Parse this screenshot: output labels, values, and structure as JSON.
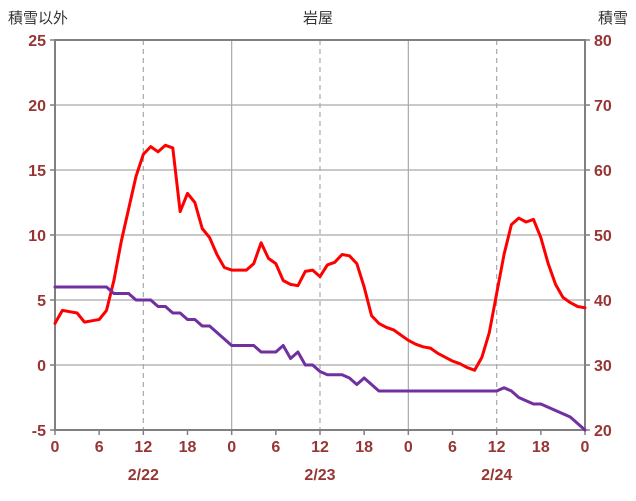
{
  "chart_data": {
    "type": "line",
    "title": "岩屋",
    "left_axis": {
      "title": "積雪以外",
      "min": -5,
      "max": 25,
      "ticks": [
        25,
        20,
        15,
        10,
        5,
        0,
        -5
      ]
    },
    "right_axis": {
      "title": "積雪",
      "min": 20,
      "max": 80,
      "ticks": [
        80,
        70,
        60,
        50,
        40,
        30,
        20
      ]
    },
    "x_axis": {
      "hours_total": 72,
      "tick_interval": 6,
      "tick_labels": [
        "0",
        "6",
        "12",
        "18",
        "0",
        "6",
        "12",
        "18",
        "0",
        "6",
        "12",
        "18",
        "0"
      ],
      "date_labels": [
        {
          "label": "2/22",
          "hour": 12
        },
        {
          "label": "2/23",
          "hour": 36
        },
        {
          "label": "2/24",
          "hour": 60
        }
      ]
    },
    "grid": {
      "h_lines": [
        20,
        15,
        10,
        5,
        0
      ],
      "v_solid_hours": [
        24,
        48
      ],
      "v_dashed_hours": [
        12,
        36,
        60
      ]
    },
    "legend": "off",
    "colors": {
      "red_series": "#FF0000",
      "purple_series": "#7030A0",
      "grid": "#A9A9A9",
      "border": "#808080",
      "tick_label": "#963634",
      "title": "#333333"
    },
    "series": [
      {
        "key": "red-line",
        "name": "積雪以外",
        "axis": "left",
        "color": "#FF0000",
        "values": [
          3.2,
          4.2,
          4.1,
          4.0,
          3.3,
          3.4,
          3.5,
          4.2,
          6.5,
          9.5,
          12.0,
          14.5,
          16.2,
          16.8,
          16.4,
          16.9,
          16.7,
          11.8,
          13.2,
          12.5,
          10.5,
          9.8,
          8.5,
          7.5,
          7.3,
          7.3,
          7.3,
          7.8,
          9.4,
          8.2,
          7.8,
          6.5,
          6.2,
          6.1,
          7.2,
          7.3,
          6.8,
          7.7,
          7.9,
          8.5,
          8.4,
          7.8,
          6.0,
          3.8,
          3.2,
          2.9,
          2.7,
          2.3,
          1.9,
          1.6,
          1.4,
          1.3,
          0.9,
          0.6,
          0.3,
          0.1,
          -0.2,
          -0.4,
          0.6,
          2.5,
          5.5,
          8.5,
          10.8,
          11.3,
          11.0,
          11.2,
          9.8,
          7.8,
          6.2,
          5.2,
          4.8,
          4.5,
          4.4
        ]
      },
      {
        "key": "purple-line",
        "name": "積雪",
        "axis": "right",
        "color": "#7030A0",
        "values": [
          42,
          42,
          42,
          42,
          42,
          42,
          42,
          42,
          41,
          41,
          41,
          40,
          40,
          40,
          39,
          39,
          38,
          38,
          37,
          37,
          36,
          36,
          35,
          34,
          33,
          33,
          33,
          33,
          32,
          32,
          32,
          33,
          31,
          32,
          30,
          30,
          29,
          28.5,
          28.5,
          28.5,
          28,
          27,
          28,
          27,
          26,
          26,
          26,
          26,
          26,
          26,
          26,
          26,
          26,
          26,
          26,
          26,
          26,
          26,
          26,
          26,
          26,
          26.5,
          26,
          25,
          24.5,
          24,
          24,
          23.5,
          23,
          22.5,
          22,
          21,
          20
        ]
      }
    ]
  }
}
